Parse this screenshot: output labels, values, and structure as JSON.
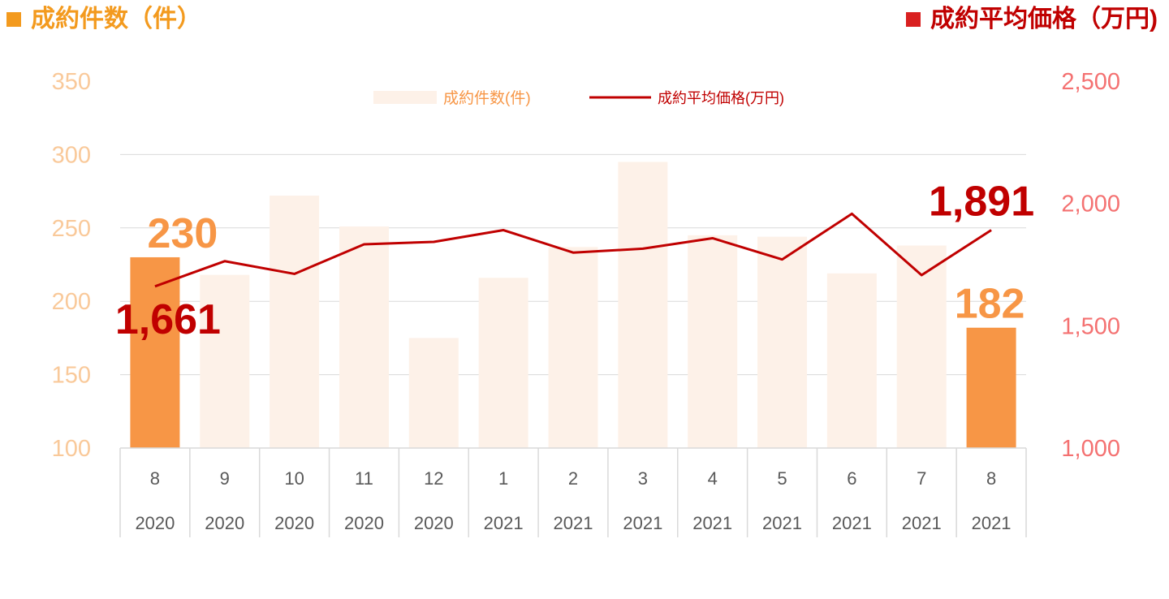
{
  "header": {
    "left_title": "成約件数（件）",
    "right_title": "成約平均価格（万円)"
  },
  "colors": {
    "bar": "#fdf1e8",
    "bar_highlight": "#f79646",
    "line": "#c00000",
    "left_axis": "#f9c99a",
    "right_axis": "#f47171",
    "count_label": "#f79646",
    "price_label": "#c00000",
    "grid": "#d9d9d9",
    "category_text": "#595959"
  },
  "chart_data": {
    "type": "bar",
    "categories": [
      "8",
      "9",
      "10",
      "11",
      "12",
      "1",
      "2",
      "3",
      "4",
      "5",
      "6",
      "7",
      "8"
    ],
    "years": [
      "2020",
      "2020",
      "2020",
      "2020",
      "2020",
      "2021",
      "2021",
      "2021",
      "2021",
      "2021",
      "2021",
      "2021",
      "2021"
    ],
    "series": [
      {
        "name": "成約件数(件)",
        "type": "bar",
        "axis": "left",
        "values": [
          230,
          218,
          272,
          251,
          175,
          216,
          237,
          295,
          245,
          244,
          219,
          238,
          182
        ],
        "highlight": [
          0,
          12
        ]
      },
      {
        "name": "成約平均価格(万円)",
        "type": "line",
        "axis": "right",
        "values": [
          1661,
          1764,
          1712,
          1833,
          1843,
          1891,
          1799,
          1815,
          1858,
          1771,
          1958,
          1707,
          1891
        ]
      }
    ],
    "ylim_left": [
      100,
      350
    ],
    "yticks_left": [
      "100",
      "150",
      "200",
      "250",
      "300",
      "350"
    ],
    "ylim_right": [
      1000,
      2500
    ],
    "yticks_right": [
      "1,000",
      "1,500",
      "2,000",
      "2,500"
    ],
    "data_labels": [
      {
        "series": 0,
        "index": 0,
        "text": "230"
      },
      {
        "series": 0,
        "index": 12,
        "text": "182"
      },
      {
        "series": 1,
        "index": 0,
        "text": "1,661"
      },
      {
        "series": 1,
        "index": 12,
        "text": "1,891"
      }
    ],
    "legend_position": "top-center",
    "grid": true
  }
}
